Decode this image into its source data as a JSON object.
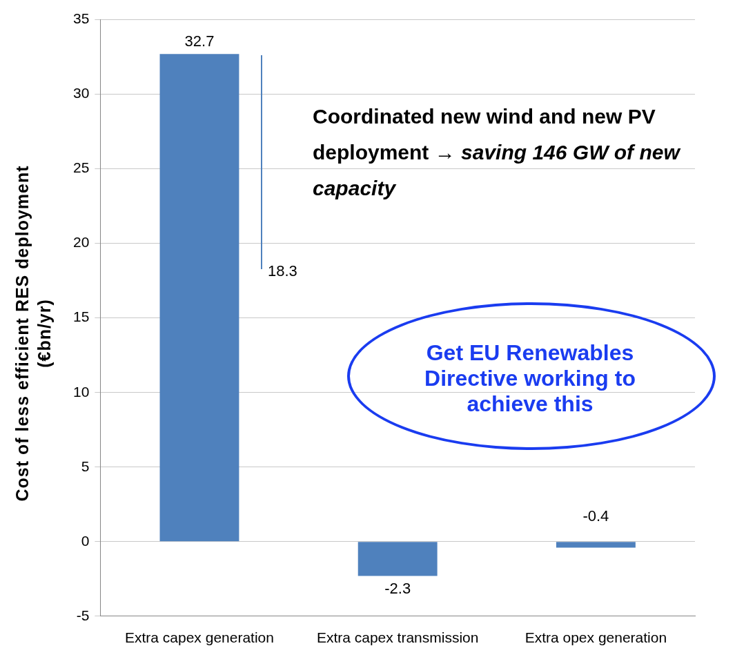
{
  "chart_data": {
    "type": "bar",
    "ylabel": "Cost of less  efficient RES deployment (€bn/yr)",
    "categories": [
      "Extra capex generation",
      "Extra capex transmission",
      "Extra opex generation"
    ],
    "values": [
      32.7,
      -2.3,
      -0.4
    ],
    "color": "#4f81bd",
    "value_labels": [
      "32.7",
      "-2.3",
      "-0.4"
    ],
    "ylim": [
      -5,
      35
    ],
    "yticks": [
      -5,
      0,
      5,
      10,
      15,
      20,
      25,
      30,
      35
    ],
    "grid": "y",
    "annotations": [
      "Coordinated new wind and new PV deployment →",
      "saving 146 GW of new capacity",
      "Get EU Renewables Directive working to achieve this",
      "18.3"
    ]
  }
}
